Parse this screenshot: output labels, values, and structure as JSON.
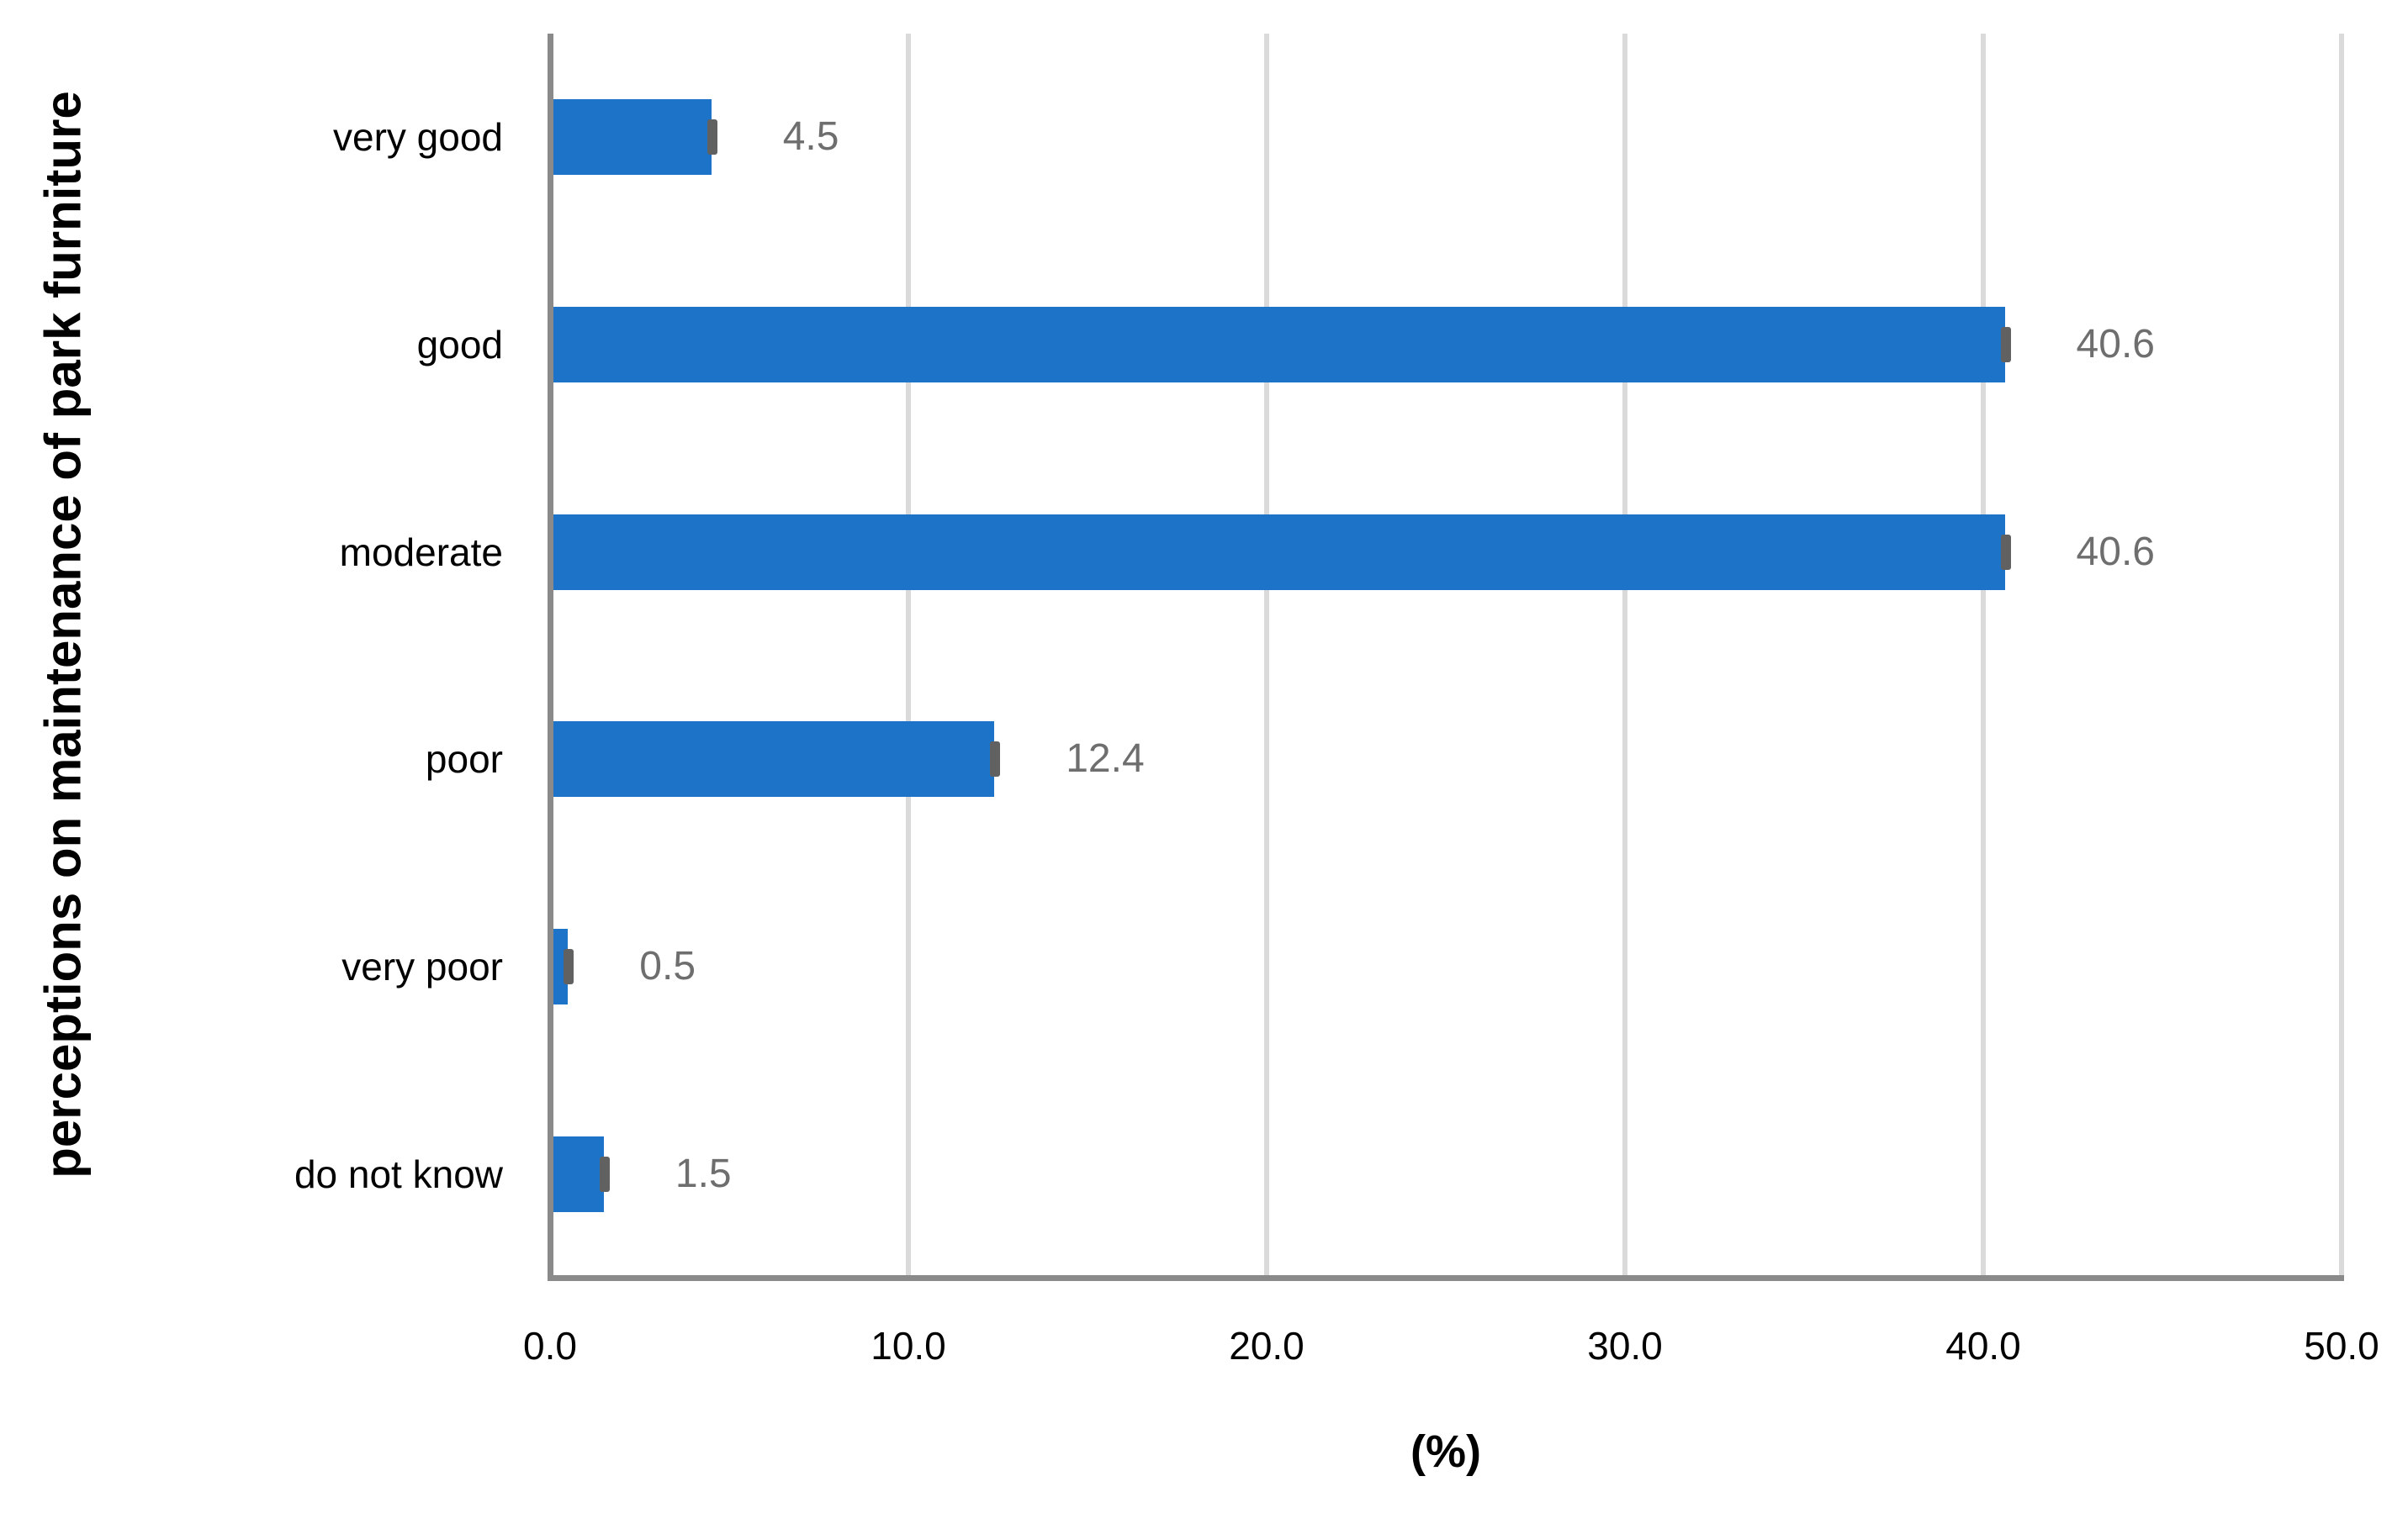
{
  "chart_data": {
    "type": "bar",
    "orientation": "horizontal",
    "title": "",
    "xlabel": "(%)",
    "ylabel": "perceptions on maintenance of park furniture",
    "categories": [
      "very good",
      "good",
      "moderate",
      "poor",
      "very poor",
      "do not know"
    ],
    "values": [
      4.5,
      40.6,
      40.6,
      12.4,
      0.5,
      1.5
    ],
    "data_labels": [
      "4.5",
      "40.6",
      "40.6",
      "12.4",
      "0.5",
      "1.5"
    ],
    "error_bars": {
      "visible": true,
      "style": "end-cap"
    },
    "xlim": [
      0,
      50
    ],
    "xticks": [
      {
        "value": 0,
        "label": "0.0"
      },
      {
        "value": 10,
        "label": "10.0"
      },
      {
        "value": 20,
        "label": "20.0"
      },
      {
        "value": 30,
        "label": "30.0"
      },
      {
        "value": 40,
        "label": "40.0"
      },
      {
        "value": 50,
        "label": "50.0"
      }
    ],
    "grid": {
      "vertical": true,
      "horizontal": false
    },
    "legend": "none",
    "colors": {
      "bar": "#1C73C8",
      "error_cap": "#616161",
      "data_label": "#6E6E6E",
      "gridline": "#DADADA",
      "axis_line": "#8A8A8A",
      "text": "#000000"
    }
  }
}
